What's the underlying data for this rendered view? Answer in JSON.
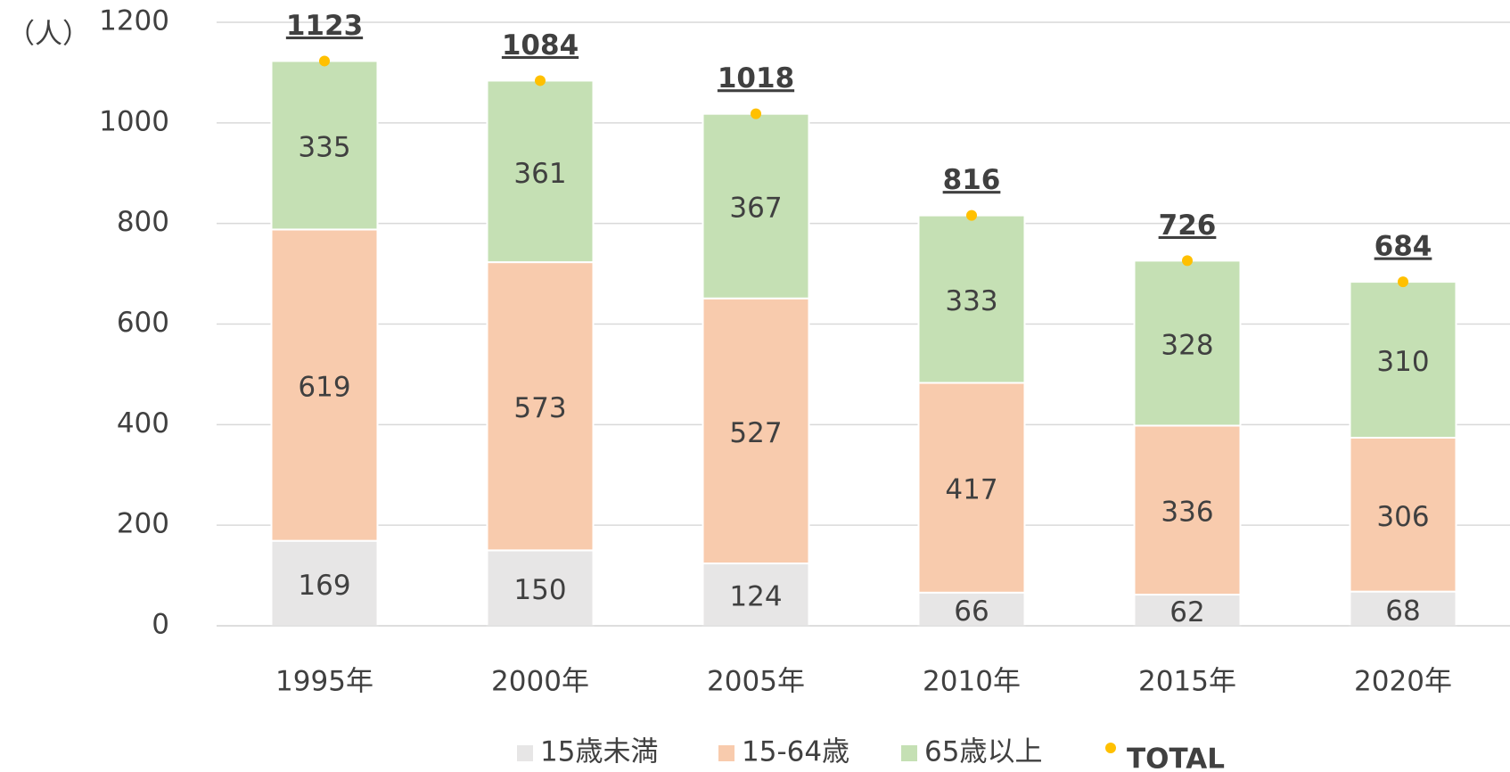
{
  "chart_data": {
    "type": "bar",
    "stacked": true,
    "ylabel": "（人）",
    "categories": [
      "1995年",
      "2000年",
      "2005年",
      "2010年",
      "2015年",
      "2020年"
    ],
    "series": [
      {
        "name": "15歳未満",
        "color": "#e7e6e6",
        "values": [
          169,
          150,
          124,
          66,
          62,
          68
        ]
      },
      {
        "name": "15-64歳",
        "color": "#f8cbad",
        "values": [
          619,
          573,
          527,
          417,
          336,
          306
        ]
      },
      {
        "name": "65歳以上",
        "color": "#c5e0b4",
        "values": [
          335,
          361,
          367,
          333,
          328,
          310
        ]
      },
      {
        "name": "TOTAL",
        "type": "scatter",
        "color": "#ffc000",
        "values": [
          1123,
          1084,
          1018,
          816,
          726,
          684
        ]
      }
    ],
    "ylim": [
      0,
      1200
    ],
    "yticks": [
      0,
      200,
      400,
      600,
      800,
      1000,
      1200
    ],
    "grid": true,
    "legend": "bottom"
  }
}
